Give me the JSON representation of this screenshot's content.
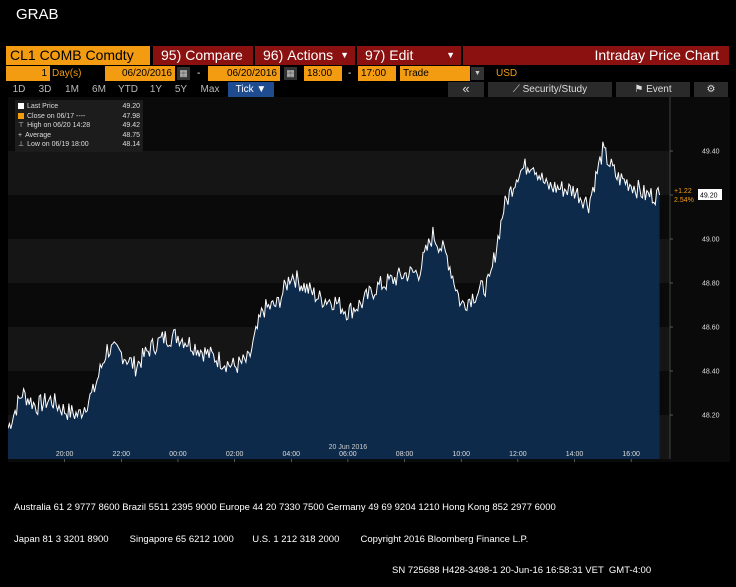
{
  "app_title": "GRAB",
  "toolbar": {
    "ticker": "CL1 COMB Comdty",
    "compare": {
      "num": "95)",
      "label": "Compare"
    },
    "actions": {
      "num": "96)",
      "label": "Actions"
    },
    "edit": {
      "num": "97)",
      "label": "Edit"
    },
    "title": "Intraday Price Chart"
  },
  "controls": {
    "period_value": "1",
    "period_unit": "Day(s)",
    "start_date": "06/20/2016",
    "end_date": "06/20/2016",
    "start_time": "18:00",
    "end_time": "17:00",
    "event_type": "Trade",
    "currency": "USD"
  },
  "range_tabs": [
    "1D",
    "3D",
    "1M",
    "6M",
    "YTD",
    "1Y",
    "5Y",
    "Max"
  ],
  "tick_button": "Tick ▼",
  "right_buttons": {
    "back": "«",
    "security": "Security/Study",
    "event": "Event"
  },
  "colors": {
    "orange": "#f39c12",
    "red_button": "#8b1010",
    "fill": "#0e2a4a",
    "line": "#ffffff",
    "tick_blue": "#1f4c8f"
  },
  "legend": [
    {
      "label": "Last Price",
      "value": "49.20",
      "marker": "white-square"
    },
    {
      "label": "Close on 06/17 ----",
      "value": "47.98",
      "marker": "orange-square"
    },
    {
      "label": "High on 06/20 14:28",
      "value": "49.42",
      "marker": "up-arrow"
    },
    {
      "label": "Average",
      "value": "48.75",
      "marker": "plus"
    },
    {
      "label": "Low on 06/19 18:00",
      "value": "48.14",
      "marker": "down-arrow"
    }
  ],
  "chart_data": {
    "type": "area",
    "date_label": "20 Jun 2016",
    "x_ticks": [
      "20:00",
      "22:00",
      "00:00",
      "02:00",
      "04:00",
      "06:00",
      "08:00",
      "10:00",
      "12:00",
      "14:00",
      "16:00"
    ],
    "y_ticks": [
      "48.20",
      "48.40",
      "48.60",
      "48.80",
      "49.00",
      "49.20",
      "49.40"
    ],
    "ylim": [
      48.0,
      49.6
    ],
    "last_price_label": "49.20",
    "change_label": "+1.22",
    "change_pct_label": "2.54%",
    "x_hours": [
      18,
      18.5,
      19,
      19.5,
      20,
      20.5,
      21,
      21.5,
      22,
      22.5,
      23,
      23.5,
      24,
      24.5,
      25,
      25.5,
      26,
      26.5,
      27,
      27.5,
      28,
      28.5,
      29,
      29.5,
      30,
      30.5,
      31,
      31.5,
      32,
      32.5,
      33,
      33.5,
      34,
      34.5,
      35,
      35.5,
      36,
      36.5,
      37,
      37.5,
      38,
      38.5,
      39,
      39.5,
      40,
      40.5,
      41
    ],
    "values": [
      48.14,
      48.3,
      48.24,
      48.27,
      48.22,
      48.2,
      48.3,
      48.5,
      48.48,
      48.42,
      48.5,
      48.55,
      48.56,
      48.52,
      48.48,
      48.45,
      48.42,
      48.45,
      48.68,
      48.7,
      48.84,
      48.78,
      48.73,
      48.72,
      48.67,
      48.71,
      48.78,
      48.81,
      48.84,
      48.85,
      49.02,
      48.92,
      48.7,
      48.75,
      48.8,
      49.14,
      49.3,
      49.35,
      49.24,
      49.23,
      49.22,
      49.16,
      49.4,
      49.28,
      49.25,
      49.2,
      49.2
    ]
  },
  "footer": {
    "line1": "Australia 61 2 9777 8600 Brazil 5511 2395 9000 Europe 44 20 7330 7500 Germany 49 69 9204 1210 Hong Kong 852 2977 6000",
    "line2": "Japan 81 3 3201 8900        Singapore 65 6212 1000       U.S. 1 212 318 2000        Copyright 2016 Bloomberg Finance L.P.",
    "line3": "SN 725688 H428-3498-1 20-Jun-16 16:58:31 VET  GMT-4:00"
  }
}
